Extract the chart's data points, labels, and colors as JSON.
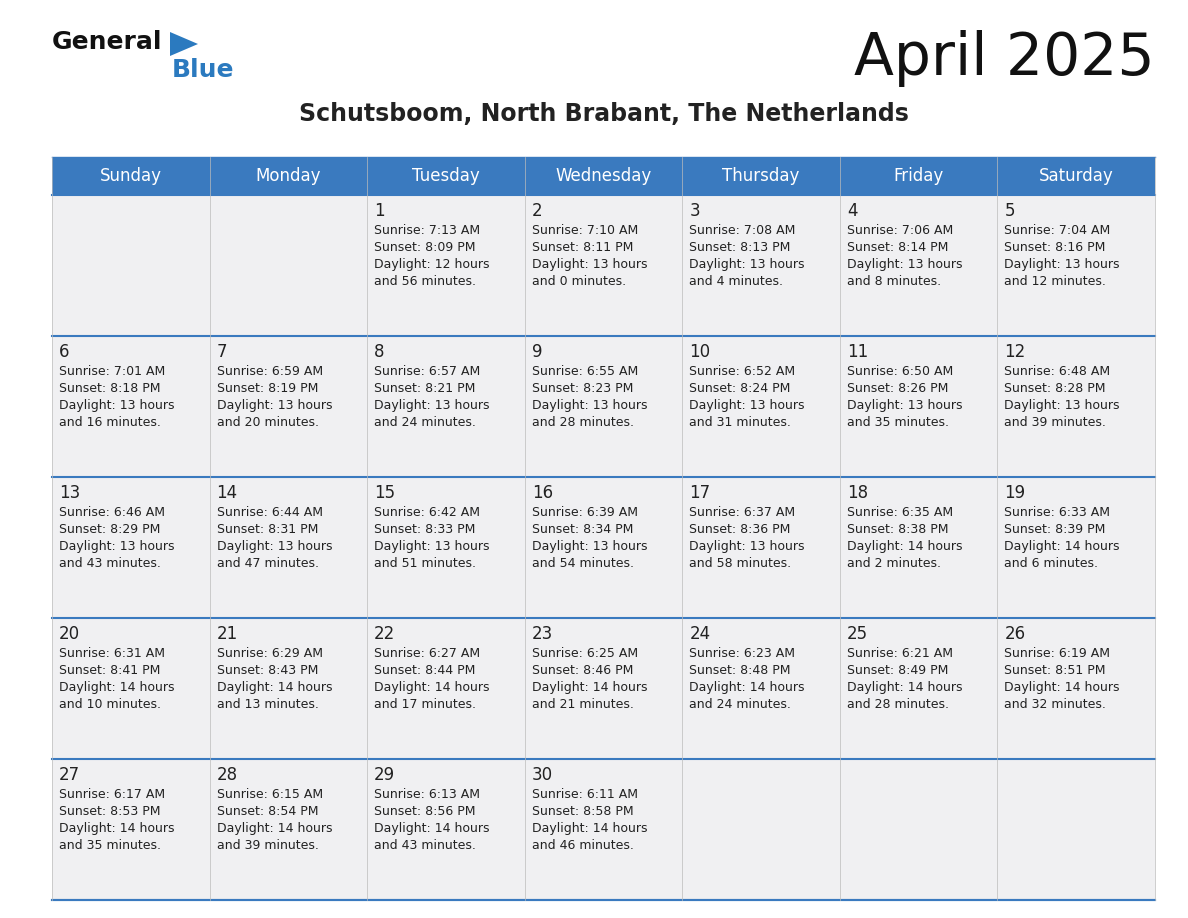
{
  "title": "April 2025",
  "subtitle": "Schutsboom, North Brabant, The Netherlands",
  "header_bg_color": "#3a7abf",
  "header_text_color": "#ffffff",
  "cell_bg_odd": "#f0f0f0",
  "cell_bg_even": "#ffffff",
  "text_color": "#222222",
  "border_color": "#3a7abf",
  "days_of_week": [
    "Sunday",
    "Monday",
    "Tuesday",
    "Wednesday",
    "Thursday",
    "Friday",
    "Saturday"
  ],
  "weeks": [
    [
      {
        "day": "",
        "sunrise": "",
        "sunset": "",
        "daylight_line1": "",
        "daylight_line2": ""
      },
      {
        "day": "",
        "sunrise": "",
        "sunset": "",
        "daylight_line1": "",
        "daylight_line2": ""
      },
      {
        "day": "1",
        "sunrise": "Sunrise: 7:13 AM",
        "sunset": "Sunset: 8:09 PM",
        "daylight_line1": "Daylight: 12 hours",
        "daylight_line2": "and 56 minutes."
      },
      {
        "day": "2",
        "sunrise": "Sunrise: 7:10 AM",
        "sunset": "Sunset: 8:11 PM",
        "daylight_line1": "Daylight: 13 hours",
        "daylight_line2": "and 0 minutes."
      },
      {
        "day": "3",
        "sunrise": "Sunrise: 7:08 AM",
        "sunset": "Sunset: 8:13 PM",
        "daylight_line1": "Daylight: 13 hours",
        "daylight_line2": "and 4 minutes."
      },
      {
        "day": "4",
        "sunrise": "Sunrise: 7:06 AM",
        "sunset": "Sunset: 8:14 PM",
        "daylight_line1": "Daylight: 13 hours",
        "daylight_line2": "and 8 minutes."
      },
      {
        "day": "5",
        "sunrise": "Sunrise: 7:04 AM",
        "sunset": "Sunset: 8:16 PM",
        "daylight_line1": "Daylight: 13 hours",
        "daylight_line2": "and 12 minutes."
      }
    ],
    [
      {
        "day": "6",
        "sunrise": "Sunrise: 7:01 AM",
        "sunset": "Sunset: 8:18 PM",
        "daylight_line1": "Daylight: 13 hours",
        "daylight_line2": "and 16 minutes."
      },
      {
        "day": "7",
        "sunrise": "Sunrise: 6:59 AM",
        "sunset": "Sunset: 8:19 PM",
        "daylight_line1": "Daylight: 13 hours",
        "daylight_line2": "and 20 minutes."
      },
      {
        "day": "8",
        "sunrise": "Sunrise: 6:57 AM",
        "sunset": "Sunset: 8:21 PM",
        "daylight_line1": "Daylight: 13 hours",
        "daylight_line2": "and 24 minutes."
      },
      {
        "day": "9",
        "sunrise": "Sunrise: 6:55 AM",
        "sunset": "Sunset: 8:23 PM",
        "daylight_line1": "Daylight: 13 hours",
        "daylight_line2": "and 28 minutes."
      },
      {
        "day": "10",
        "sunrise": "Sunrise: 6:52 AM",
        "sunset": "Sunset: 8:24 PM",
        "daylight_line1": "Daylight: 13 hours",
        "daylight_line2": "and 31 minutes."
      },
      {
        "day": "11",
        "sunrise": "Sunrise: 6:50 AM",
        "sunset": "Sunset: 8:26 PM",
        "daylight_line1": "Daylight: 13 hours",
        "daylight_line2": "and 35 minutes."
      },
      {
        "day": "12",
        "sunrise": "Sunrise: 6:48 AM",
        "sunset": "Sunset: 8:28 PM",
        "daylight_line1": "Daylight: 13 hours",
        "daylight_line2": "and 39 minutes."
      }
    ],
    [
      {
        "day": "13",
        "sunrise": "Sunrise: 6:46 AM",
        "sunset": "Sunset: 8:29 PM",
        "daylight_line1": "Daylight: 13 hours",
        "daylight_line2": "and 43 minutes."
      },
      {
        "day": "14",
        "sunrise": "Sunrise: 6:44 AM",
        "sunset": "Sunset: 8:31 PM",
        "daylight_line1": "Daylight: 13 hours",
        "daylight_line2": "and 47 minutes."
      },
      {
        "day": "15",
        "sunrise": "Sunrise: 6:42 AM",
        "sunset": "Sunset: 8:33 PM",
        "daylight_line1": "Daylight: 13 hours",
        "daylight_line2": "and 51 minutes."
      },
      {
        "day": "16",
        "sunrise": "Sunrise: 6:39 AM",
        "sunset": "Sunset: 8:34 PM",
        "daylight_line1": "Daylight: 13 hours",
        "daylight_line2": "and 54 minutes."
      },
      {
        "day": "17",
        "sunrise": "Sunrise: 6:37 AM",
        "sunset": "Sunset: 8:36 PM",
        "daylight_line1": "Daylight: 13 hours",
        "daylight_line2": "and 58 minutes."
      },
      {
        "day": "18",
        "sunrise": "Sunrise: 6:35 AM",
        "sunset": "Sunset: 8:38 PM",
        "daylight_line1": "Daylight: 14 hours",
        "daylight_line2": "and 2 minutes."
      },
      {
        "day": "19",
        "sunrise": "Sunrise: 6:33 AM",
        "sunset": "Sunset: 8:39 PM",
        "daylight_line1": "Daylight: 14 hours",
        "daylight_line2": "and 6 minutes."
      }
    ],
    [
      {
        "day": "20",
        "sunrise": "Sunrise: 6:31 AM",
        "sunset": "Sunset: 8:41 PM",
        "daylight_line1": "Daylight: 14 hours",
        "daylight_line2": "and 10 minutes."
      },
      {
        "day": "21",
        "sunrise": "Sunrise: 6:29 AM",
        "sunset": "Sunset: 8:43 PM",
        "daylight_line1": "Daylight: 14 hours",
        "daylight_line2": "and 13 minutes."
      },
      {
        "day": "22",
        "sunrise": "Sunrise: 6:27 AM",
        "sunset": "Sunset: 8:44 PM",
        "daylight_line1": "Daylight: 14 hours",
        "daylight_line2": "and 17 minutes."
      },
      {
        "day": "23",
        "sunrise": "Sunrise: 6:25 AM",
        "sunset": "Sunset: 8:46 PM",
        "daylight_line1": "Daylight: 14 hours",
        "daylight_line2": "and 21 minutes."
      },
      {
        "day": "24",
        "sunrise": "Sunrise: 6:23 AM",
        "sunset": "Sunset: 8:48 PM",
        "daylight_line1": "Daylight: 14 hours",
        "daylight_line2": "and 24 minutes."
      },
      {
        "day": "25",
        "sunrise": "Sunrise: 6:21 AM",
        "sunset": "Sunset: 8:49 PM",
        "daylight_line1": "Daylight: 14 hours",
        "daylight_line2": "and 28 minutes."
      },
      {
        "day": "26",
        "sunrise": "Sunrise: 6:19 AM",
        "sunset": "Sunset: 8:51 PM",
        "daylight_line1": "Daylight: 14 hours",
        "daylight_line2": "and 32 minutes."
      }
    ],
    [
      {
        "day": "27",
        "sunrise": "Sunrise: 6:17 AM",
        "sunset": "Sunset: 8:53 PM",
        "daylight_line1": "Daylight: 14 hours",
        "daylight_line2": "and 35 minutes."
      },
      {
        "day": "28",
        "sunrise": "Sunrise: 6:15 AM",
        "sunset": "Sunset: 8:54 PM",
        "daylight_line1": "Daylight: 14 hours",
        "daylight_line2": "and 39 minutes."
      },
      {
        "day": "29",
        "sunrise": "Sunrise: 6:13 AM",
        "sunset": "Sunset: 8:56 PM",
        "daylight_line1": "Daylight: 14 hours",
        "daylight_line2": "and 43 minutes."
      },
      {
        "day": "30",
        "sunrise": "Sunrise: 6:11 AM",
        "sunset": "Sunset: 8:58 PM",
        "daylight_line1": "Daylight: 14 hours",
        "daylight_line2": "and 46 minutes."
      },
      {
        "day": "",
        "sunrise": "",
        "sunset": "",
        "daylight_line1": "",
        "daylight_line2": ""
      },
      {
        "day": "",
        "sunrise": "",
        "sunset": "",
        "daylight_line1": "",
        "daylight_line2": ""
      },
      {
        "day": "",
        "sunrise": "",
        "sunset": "",
        "daylight_line1": "",
        "daylight_line2": ""
      }
    ]
  ],
  "logo_general_color": "#111111",
  "logo_blue_color": "#2b7abf",
  "logo_triangle_color": "#2b7abf"
}
